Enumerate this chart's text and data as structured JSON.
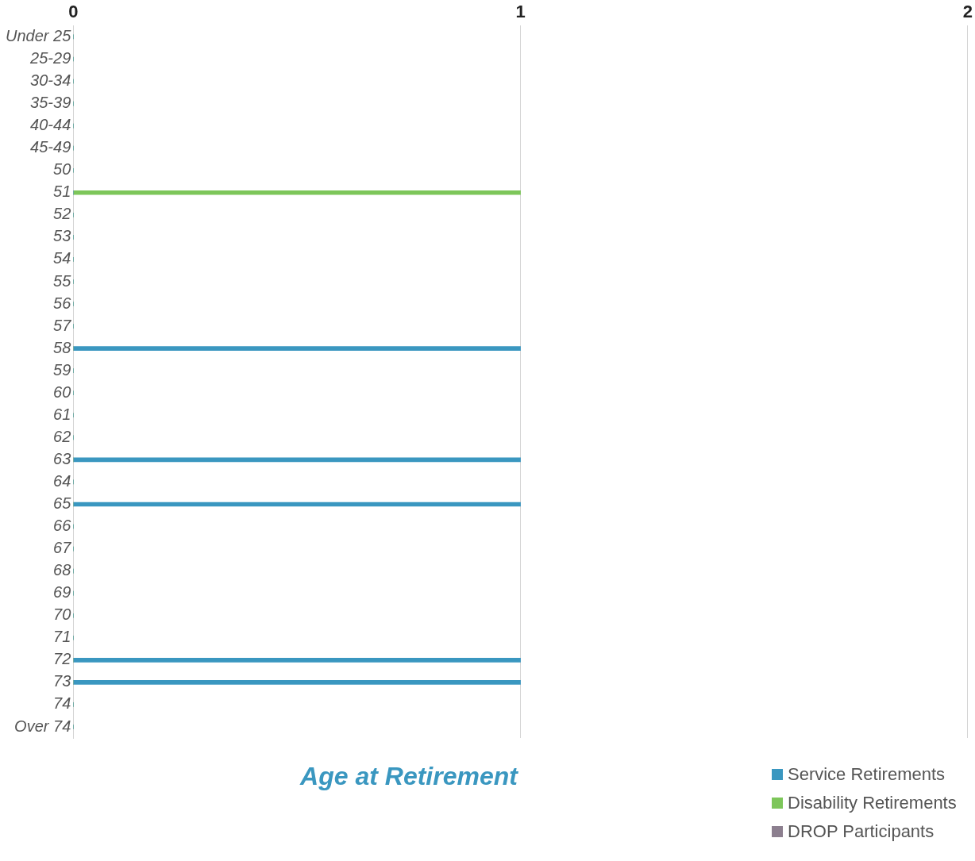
{
  "chart_data": {
    "type": "bar",
    "orientation": "horizontal",
    "title": "Age at Retirement",
    "categories": [
      "Under 25",
      "25-29",
      "30-34",
      "35-39",
      "40-44",
      "45-49",
      "50",
      "51",
      "52",
      "53",
      "54",
      "55",
      "56",
      "57",
      "58",
      "59",
      "60",
      "61",
      "62",
      "63",
      "64",
      "65",
      "66",
      "67",
      "68",
      "69",
      "70",
      "71",
      "72",
      "73",
      "74",
      "Over 74"
    ],
    "series": [
      {
        "name": "Service Retirements",
        "color": "#3a97c0",
        "values": [
          0,
          0,
          0,
          0,
          0,
          0,
          0,
          0,
          0,
          0,
          0,
          0,
          0,
          0,
          1,
          0,
          0,
          0,
          0,
          1,
          0,
          1,
          0,
          0,
          0,
          0,
          0,
          0,
          1,
          1,
          0,
          0
        ]
      },
      {
        "name": "Disability Retirements",
        "color": "#7dc65a",
        "values": [
          0,
          0,
          0,
          0,
          0,
          0,
          0,
          1,
          0,
          0,
          0,
          0,
          0,
          0,
          0,
          0,
          0,
          0,
          0,
          0,
          0,
          0,
          0,
          0,
          0,
          0,
          0,
          0,
          0,
          0,
          0,
          0
        ]
      },
      {
        "name": "DROP Participants",
        "color": "#8c7f8f",
        "values": [
          0,
          0,
          0,
          0,
          0,
          0,
          0,
          0,
          0,
          0,
          0,
          0,
          0,
          0,
          0,
          0,
          0,
          0,
          0,
          0,
          0,
          0,
          0,
          0,
          0,
          0,
          0,
          0,
          0,
          0,
          0,
          0
        ]
      }
    ],
    "xlim": [
      0,
      2
    ],
    "xticks": [
      0,
      1,
      2
    ],
    "grid": "x",
    "legend": "bottom right"
  }
}
